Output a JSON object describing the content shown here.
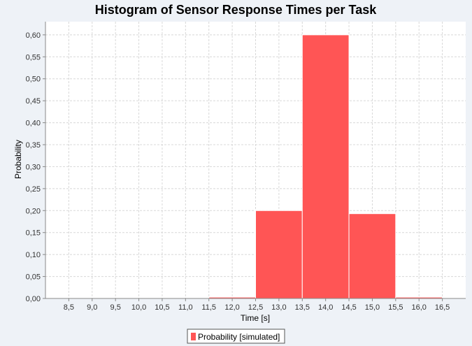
{
  "chart_data": {
    "type": "bar",
    "title": "Histogram of Sensor Response Times per Task",
    "xlabel": "Time [s]",
    "ylabel": "Probability",
    "xlim": [
      8.0,
      17.0
    ],
    "ylim": [
      0.0,
      0.63
    ],
    "x_ticks": [
      "8,5",
      "9,0",
      "9,5",
      "10,0",
      "10,5",
      "11,0",
      "11,5",
      "12,0",
      "12,5",
      "13,0",
      "13,5",
      "14,0",
      "14,5",
      "15,0",
      "15,5",
      "16,0",
      "16,5"
    ],
    "y_ticks": [
      "0,00",
      "0,05",
      "0,10",
      "0,15",
      "0,20",
      "0,25",
      "0,30",
      "0,35",
      "0,40",
      "0,45",
      "0,50",
      "0,55",
      "0,60"
    ],
    "bins": [
      {
        "from": 11.5,
        "to": 12.5,
        "value": 0.003
      },
      {
        "from": 12.5,
        "to": 13.5,
        "value": 0.2
      },
      {
        "from": 13.5,
        "to": 14.5,
        "value": 0.6
      },
      {
        "from": 14.5,
        "to": 15.5,
        "value": 0.193
      },
      {
        "from": 15.5,
        "to": 16.5,
        "value": 0.003
      }
    ],
    "grid": true,
    "legend_position": "bottom",
    "series": [
      {
        "name": "Probability [simulated]",
        "color": "#ff5555"
      }
    ]
  },
  "colors": {
    "plot_background": "#ffffff",
    "page_background": "#eef2f7",
    "gridline": "#d8d8d8",
    "bar_fill": "#ff5555",
    "bar_stroke": "#ffffff"
  }
}
